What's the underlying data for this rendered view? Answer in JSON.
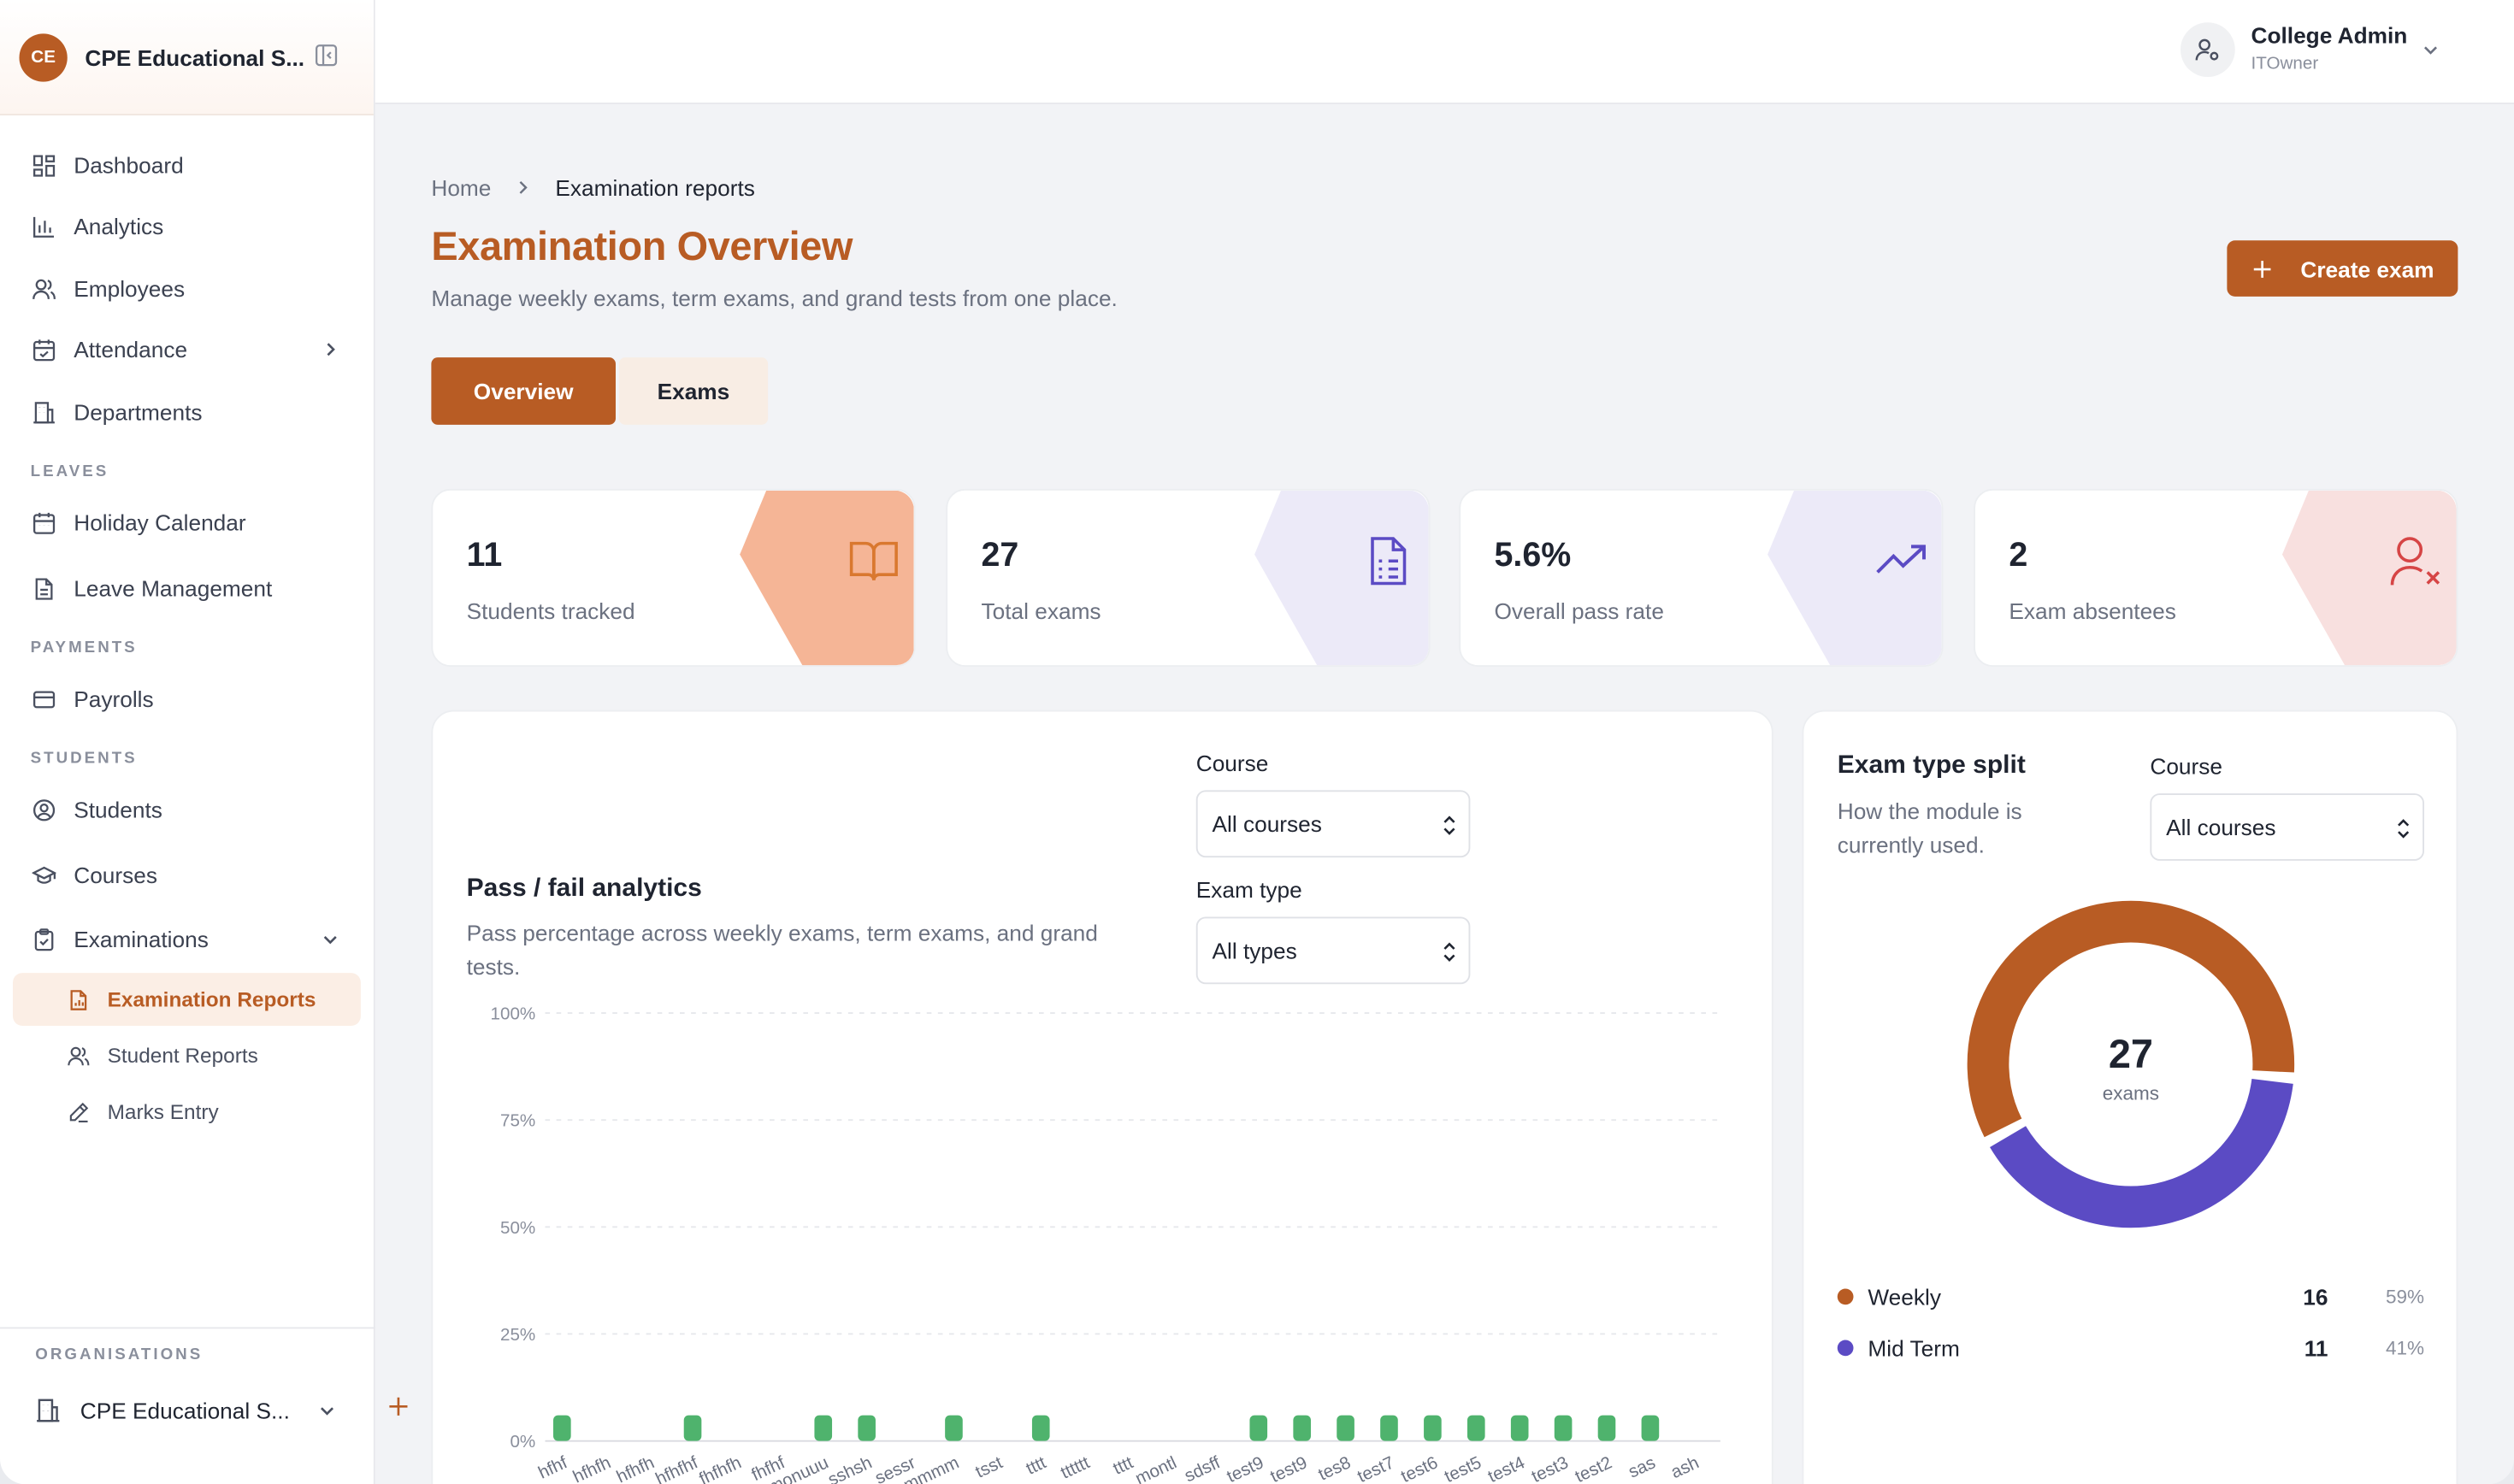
{
  "sidebar": {
    "logo_initials": "CE",
    "org_name": "CPE Educational S...",
    "items": {
      "dashboard": "Dashboard",
      "analytics": "Analytics",
      "employees": "Employees",
      "attendance": "Attendance",
      "departments": "Departments",
      "holiday_calendar": "Holiday Calendar",
      "leave_management": "Leave Management",
      "payrolls": "Payrolls",
      "students": "Students",
      "courses": "Courses",
      "examinations": "Examinations",
      "examination_reports": "Examination Reports",
      "student_reports": "Student Reports",
      "marks_entry": "Marks Entry"
    },
    "sections": {
      "leaves": "LEAVES",
      "payments": "PAYMENTS",
      "students": "STUDENTS"
    },
    "footer": {
      "label": "ORGANISATIONS",
      "org_name": "CPE Educational S..."
    }
  },
  "header": {
    "user_name": "College Admin",
    "user_role": "ITOwner"
  },
  "breadcrumb": {
    "home": "Home",
    "current": "Examination reports"
  },
  "page": {
    "title": "Examination Overview",
    "subtitle": "Manage weekly exams, term exams, and grand tests from one place.",
    "create_label": "Create exam"
  },
  "tabs": {
    "overview": "Overview",
    "exams": "Exams"
  },
  "stats": [
    {
      "value": "11",
      "label": "Students tracked",
      "shape_color": "#f5b596",
      "icon": "book-open-icon",
      "icon_color": "#d9782f"
    },
    {
      "value": "27",
      "label": "Total exams",
      "shape_color": "#eceaf8",
      "icon": "file-text-icon",
      "icon_color": "#5b4bc4"
    },
    {
      "value": "5.6%",
      "label": "Overall pass rate",
      "shape_color": "#eceaf8",
      "icon": "trending-up-icon",
      "icon_color": "#5b4bc4"
    },
    {
      "value": "2",
      "label": "Exam absentees",
      "shape_color": "#f8e0df",
      "icon": "user-x-icon",
      "icon_color": "#d64545"
    }
  ],
  "pass_fail": {
    "title": "Pass / fail analytics",
    "subtitle": "Pass percentage across weekly exams, term exams, and grand tests.",
    "course_label": "Course",
    "course_value": "All courses",
    "exam_type_label": "Exam type",
    "exam_type_value": "All types"
  },
  "chart_data": {
    "type": "bar",
    "categories": [
      "hfhf",
      "hfhfh",
      "hfhfh",
      "hfhfhf",
      "fhfhfh",
      "fhfhf",
      "monuuu",
      "sshsh",
      "sessr",
      "mmmm",
      "tsst",
      "tttt",
      "tttttt",
      "tttt",
      "montl",
      "sdsff",
      "test9",
      "test9",
      "tes8",
      "test7",
      "test6",
      "test5",
      "test4",
      "test3",
      "test2",
      "sas",
      "ash"
    ],
    "values": [
      6,
      0,
      0,
      6,
      0,
      0,
      6,
      6,
      0,
      6,
      0,
      6,
      0,
      0,
      0,
      0,
      6,
      6,
      6,
      6,
      6,
      6,
      6,
      6,
      6,
      6,
      0
    ],
    "yticks": [
      "100%",
      "75%",
      "50%",
      "25%",
      "0%"
    ],
    "ylim": [
      0,
      100
    ],
    "bar_color": "#4fb36d",
    "grid": true
  },
  "exam_split": {
    "title": "Exam type split",
    "subtitle": "How the module is currently used.",
    "course_label": "Course",
    "course_value": "All courses",
    "total": "27",
    "total_label": "exams",
    "segments": [
      {
        "name": "Weekly",
        "count": "16",
        "pct": "59%",
        "value": 16,
        "color": "#b85c24"
      },
      {
        "name": "Mid Term",
        "count": "11",
        "pct": "41%",
        "value": 11,
        "color": "#5b4bc4"
      }
    ]
  }
}
